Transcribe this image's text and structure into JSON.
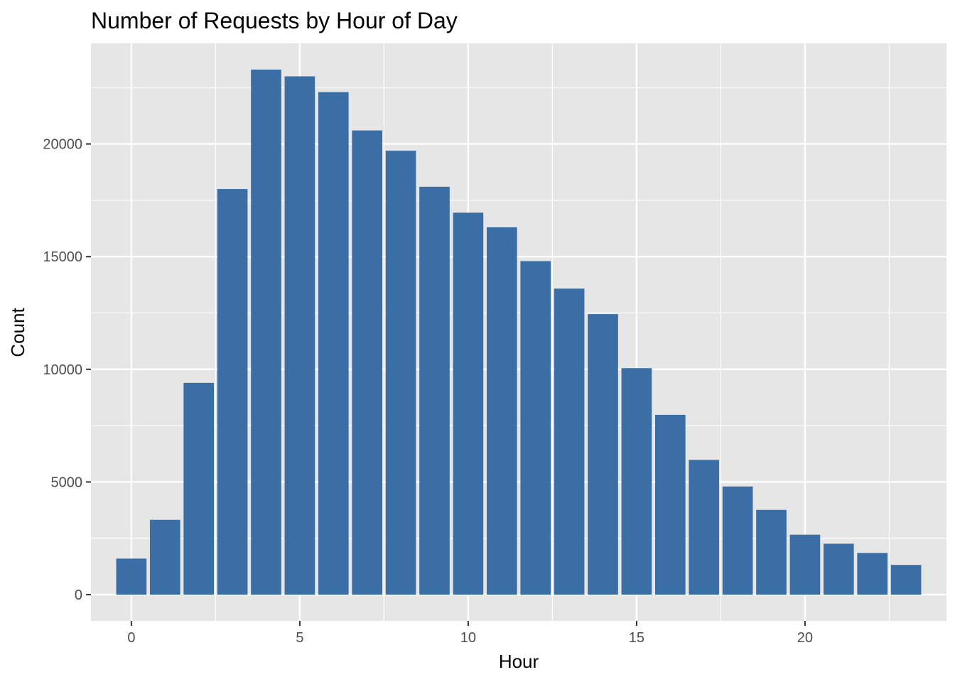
{
  "chart_data": {
    "type": "bar",
    "title": "Number of Requests by Hour of Day",
    "xlabel": "Hour",
    "ylabel": "Count",
    "x": [
      0,
      1,
      2,
      3,
      4,
      5,
      6,
      7,
      8,
      9,
      10,
      11,
      12,
      13,
      14,
      15,
      16,
      17,
      18,
      19,
      20,
      21,
      22,
      23
    ],
    "values": [
      1600,
      3320,
      9400,
      18000,
      23300,
      23000,
      22300,
      20600,
      19700,
      18100,
      16950,
      16300,
      14800,
      13580,
      12450,
      10050,
      7980,
      5980,
      4800,
      3760,
      2660,
      2260,
      1850,
      1320
    ],
    "xticks": [
      0,
      5,
      10,
      15,
      20
    ],
    "xtick_labels": [
      "0",
      "5",
      "10",
      "15",
      "20"
    ],
    "yticks": [
      0,
      5000,
      10000,
      15000,
      20000
    ],
    "ytick_labels": [
      "0",
      "5000",
      "10000",
      "15000",
      "20000"
    ],
    "xlim": [
      -1.2,
      24.2
    ],
    "ylim": [
      -1165,
      24465
    ],
    "grid": true,
    "legend": "none",
    "colors": {
      "bar": "#3A6EA5",
      "panel": "#E6E6E6",
      "grid": "#FFFFFF",
      "tick": "#333333"
    }
  }
}
